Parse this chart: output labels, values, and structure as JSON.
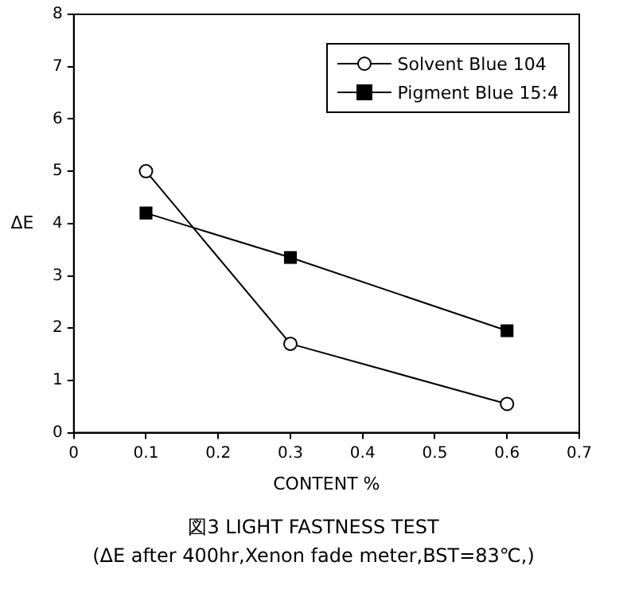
{
  "chart_data": {
    "type": "line",
    "title": "図3 LIGHT FASTNESS TEST",
    "subtitle": "(ΔE after 400hr,Xenon fade meter,BST=83℃,)",
    "xlabel": "CONTENT %",
    "ylabel": "ΔE",
    "series": [
      {
        "name": "Solvent Blue 104",
        "color": "#000000",
        "marker": "circle",
        "x": [
          0.1,
          0.3,
          0.6
        ],
        "values": [
          5.0,
          1.7,
          0.55
        ]
      },
      {
        "name": "Pigment Blue 15:4",
        "color": "#000000",
        "marker": "square",
        "x": [
          0.1,
          0.3,
          0.6
        ],
        "values": [
          4.2,
          3.35,
          1.95
        ]
      }
    ],
    "xlim": [
      0,
      0.7
    ],
    "xticks": [
      0,
      0.1,
      0.2,
      0.3,
      0.4,
      0.5,
      0.6,
      0.7
    ],
    "ylim": [
      0,
      8
    ],
    "yticks": [
      0,
      1,
      2,
      3,
      4,
      5,
      6,
      7,
      8
    ],
    "grid": false,
    "legend": "top right",
    "line_style": "solid"
  }
}
